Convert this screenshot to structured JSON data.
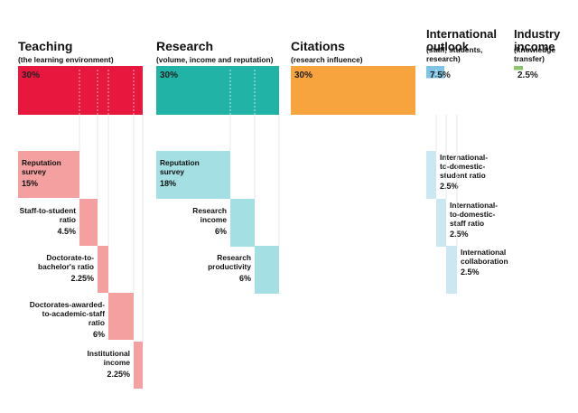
{
  "chart_data": {
    "type": "bar",
    "unit": "%",
    "categories": [
      {
        "name": "Teaching",
        "subtitle": "(the learning environment)",
        "value": 30,
        "label": "30%",
        "color": "#e8173d",
        "subcolor": "#f5a0a0",
        "components": [
          {
            "name": "Reputation survey",
            "value": 15,
            "label": "15%"
          },
          {
            "name": "Staff-to-student ratio",
            "value": 4.5,
            "label": "4.5%"
          },
          {
            "name": "Doctorate-to-bachelor's ratio",
            "value": 2.25,
            "label": "2.25%"
          },
          {
            "name": "Doctorates-awarded-to-academic-staff ratio",
            "value": 6,
            "label": "6%"
          },
          {
            "name": "Institutional income",
            "value": 2.25,
            "label": "2.25%"
          }
        ]
      },
      {
        "name": "Research",
        "subtitle": "(volume, income and reputation)",
        "value": 30,
        "label": "30%",
        "color": "#20b3a6",
        "subcolor": "#a4e0e3",
        "components": [
          {
            "name": "Reputation survey",
            "value": 18,
            "label": "18%"
          },
          {
            "name": "Research income",
            "value": 6,
            "label": "6%"
          },
          {
            "name": "Research productivity",
            "value": 6,
            "label": "6%"
          }
        ]
      },
      {
        "name": "Citations",
        "subtitle": "(research influence)",
        "value": 30,
        "label": "30%",
        "color": "#f7a33e",
        "subcolor": "#f7a33e",
        "components": []
      },
      {
        "name": "International outlook",
        "subtitle": "(staff, students, research)",
        "value": 7.5,
        "label": "7.5%",
        "color": "#7fc3e6",
        "subcolor": "#cbe7f1",
        "components": [
          {
            "name": "International-to-domestic-student ratio",
            "value": 2.5,
            "label": "2.5%"
          },
          {
            "name": "International-to-domestic-staff ratio",
            "value": 2.5,
            "label": "2.5%"
          },
          {
            "name": "International collaboration",
            "value": 2.5,
            "label": "2.5%"
          }
        ]
      },
      {
        "name": "Industry income",
        "subtitle": "(knowledge transfer)",
        "value": 2.5,
        "label": "2.5%",
        "color": "#8cc56a",
        "subcolor": "#8cc56a",
        "components": []
      }
    ]
  }
}
